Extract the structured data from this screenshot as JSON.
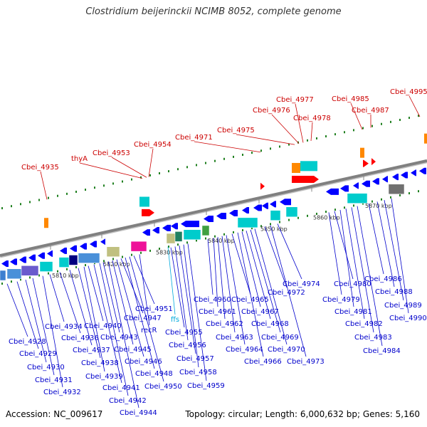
{
  "title": "Clostridium beijerinckii NCIMB 8052, complete genome",
  "footer": {
    "accession": "Accession: NC_009617",
    "summary": "Topology: circular; Length: 6,000,632 bp; Genes: 5,160"
  },
  "colors": {
    "backbone": "#808080",
    "plus_label": "#cc0000",
    "minus_label": "#0000cc",
    "rna_label": "#00aadd",
    "tick_green": "#208020",
    "gene_blue": "#0000ff",
    "gene_cyan": "#00cccc",
    "gene_red": "#ff0000",
    "gene_orange": "#ff8800"
  },
  "scale": {
    "unit": "kbp",
    "ticks": [
      "5810 kbp",
      "5820 kbp",
      "5830 kbp",
      "5840 kbp",
      "5850 kbp",
      "5860 kbp",
      "5870 kbp"
    ]
  },
  "plus_genes": [
    "Cbei_4935",
    "thyA",
    "Cbei_4953",
    "Cbei_4954",
    "Cbei_4971",
    "Cbei_4975",
    "Cbei_4976",
    "Cbei_4977",
    "Cbei_4978",
    "Cbei_4985",
    "Cbei_4987",
    "Cbei_4995"
  ],
  "rna_genes": [
    "ffs"
  ],
  "minus_genes": [
    "Cbei_4928",
    "Cbei_4929",
    "Cbei_4930",
    "Cbei_4931",
    "Cbei_4932",
    "Cbei_4934",
    "Cbei_4936",
    "Cbei_4937",
    "Cbei_4938",
    "Cbei_4939",
    "Cbei_4940",
    "Cbei_4941",
    "Cbei_4942",
    "Cbei_4943",
    "Cbei_4944",
    "Cbei_4945",
    "Cbei_4946",
    "Cbei_4947",
    "Cbei_4948",
    "Cbei_4950",
    "Cbei_4951",
    "recR",
    "Cbei_4955",
    "Cbei_4956",
    "Cbei_4957",
    "Cbei_4958",
    "Cbei_4959",
    "Cbei_4960",
    "Cbei_4961",
    "Cbei_4962",
    "Cbei_4963",
    "Cbei_4964",
    "Cbei_4965",
    "Cbei_4966",
    "Cbei_4967",
    "Cbei_4968",
    "Cbei_4969",
    "Cbei_4970",
    "Cbei_4972",
    "Cbei_4973",
    "Cbei_4974",
    "Cbei_4979",
    "Cbei_4980",
    "Cbei_4981",
    "Cbei_4982",
    "Cbei_4983",
    "Cbei_4984",
    "Cbei_4986",
    "Cbei_4988",
    "Cbei_4989",
    "Cbei_4990"
  ]
}
